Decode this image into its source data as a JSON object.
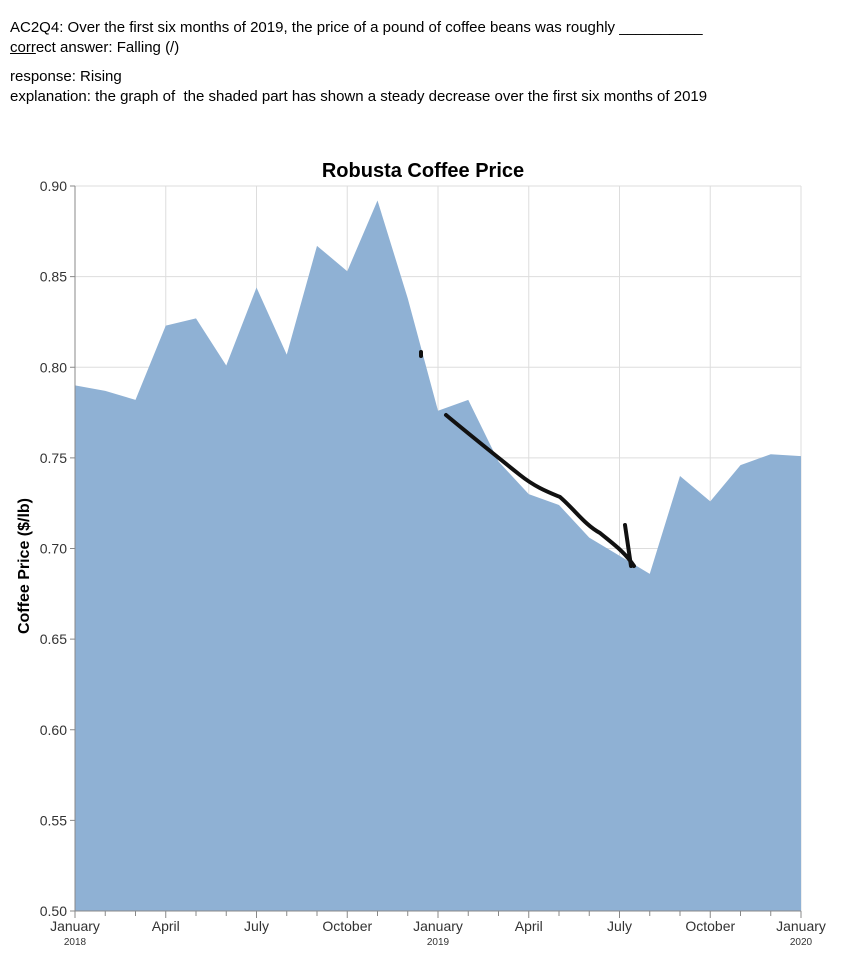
{
  "question": {
    "text": "AC2Q4: Over the first six months of 2019, the price of a pound of coffee beans was roughly __________",
    "answer_label_underlined": "corr",
    "answer_label_rest": "ect answer: Falling (/)",
    "response": "response: Rising",
    "explanation": "explanation: the graph of  the shaded part has shown a steady decrease over the first six months of 2019"
  },
  "chart_data": {
    "type": "area",
    "title": "Robusta Coffee Price",
    "xlabel": "",
    "ylabel": "Coffee Price ($/lb)",
    "ylim": [
      0.5,
      0.9
    ],
    "y_ticks": [
      "0.50",
      "0.55",
      "0.60",
      "0.65",
      "0.70",
      "0.75",
      "0.80",
      "0.85",
      "0.90"
    ],
    "x_ticks": [
      {
        "label": "January",
        "sub": "2018"
      },
      {
        "label": "April",
        "sub": ""
      },
      {
        "label": "July",
        "sub": ""
      },
      {
        "label": "October",
        "sub": ""
      },
      {
        "label": "January",
        "sub": "2019"
      },
      {
        "label": "April",
        "sub": ""
      },
      {
        "label": "July",
        "sub": ""
      },
      {
        "label": "October",
        "sub": ""
      },
      {
        "label": "January",
        "sub": "2020"
      }
    ],
    "x": [
      "2018-01",
      "2018-02",
      "2018-03",
      "2018-04",
      "2018-05",
      "2018-06",
      "2018-07",
      "2018-08",
      "2018-09",
      "2018-10",
      "2018-11",
      "2018-12",
      "2019-01",
      "2019-02",
      "2019-03",
      "2019-04",
      "2019-05",
      "2019-06",
      "2019-07",
      "2019-08",
      "2019-09",
      "2019-10",
      "2019-11",
      "2019-12",
      "2020-01"
    ],
    "values": [
      0.79,
      0.787,
      0.782,
      0.823,
      0.827,
      0.801,
      0.844,
      0.807,
      0.867,
      0.853,
      0.892,
      0.838,
      0.776,
      0.782,
      0.748,
      0.73,
      0.724,
      0.706,
      0.696,
      0.686,
      0.74,
      0.726,
      0.746,
      0.752,
      0.751
    ],
    "grid": true,
    "colors": {
      "area": "#8fb1d4",
      "grid": "#dddddd",
      "axis": "#888888"
    },
    "annotation": "hand-drawn downward stroke over Jan–Jul 2019"
  }
}
